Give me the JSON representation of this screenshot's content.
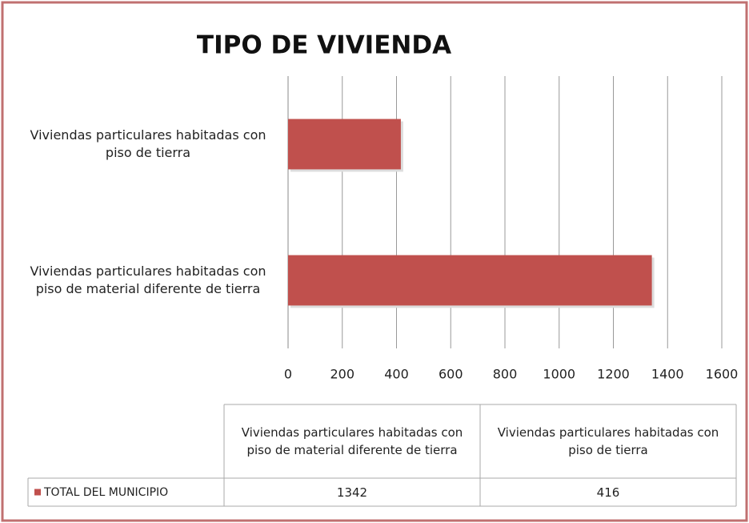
{
  "chart_data": {
    "type": "bar",
    "orientation": "horizontal",
    "title": "TIPO DE VIVIENDA",
    "categories": [
      "Viviendas particulares habitadas con piso de material diferente de tierra",
      "Viviendas particulares habitadas con piso de tierra"
    ],
    "series": [
      {
        "name": "TOTAL DEL MUNICIPIO",
        "color": "#c0504d",
        "values": [
          1342,
          416
        ]
      }
    ],
    "xlim": [
      0,
      1600
    ],
    "xticks": [
      0,
      200,
      400,
      600,
      800,
      1000,
      1200,
      1400,
      1600
    ],
    "grid": true,
    "data_table": true
  }
}
